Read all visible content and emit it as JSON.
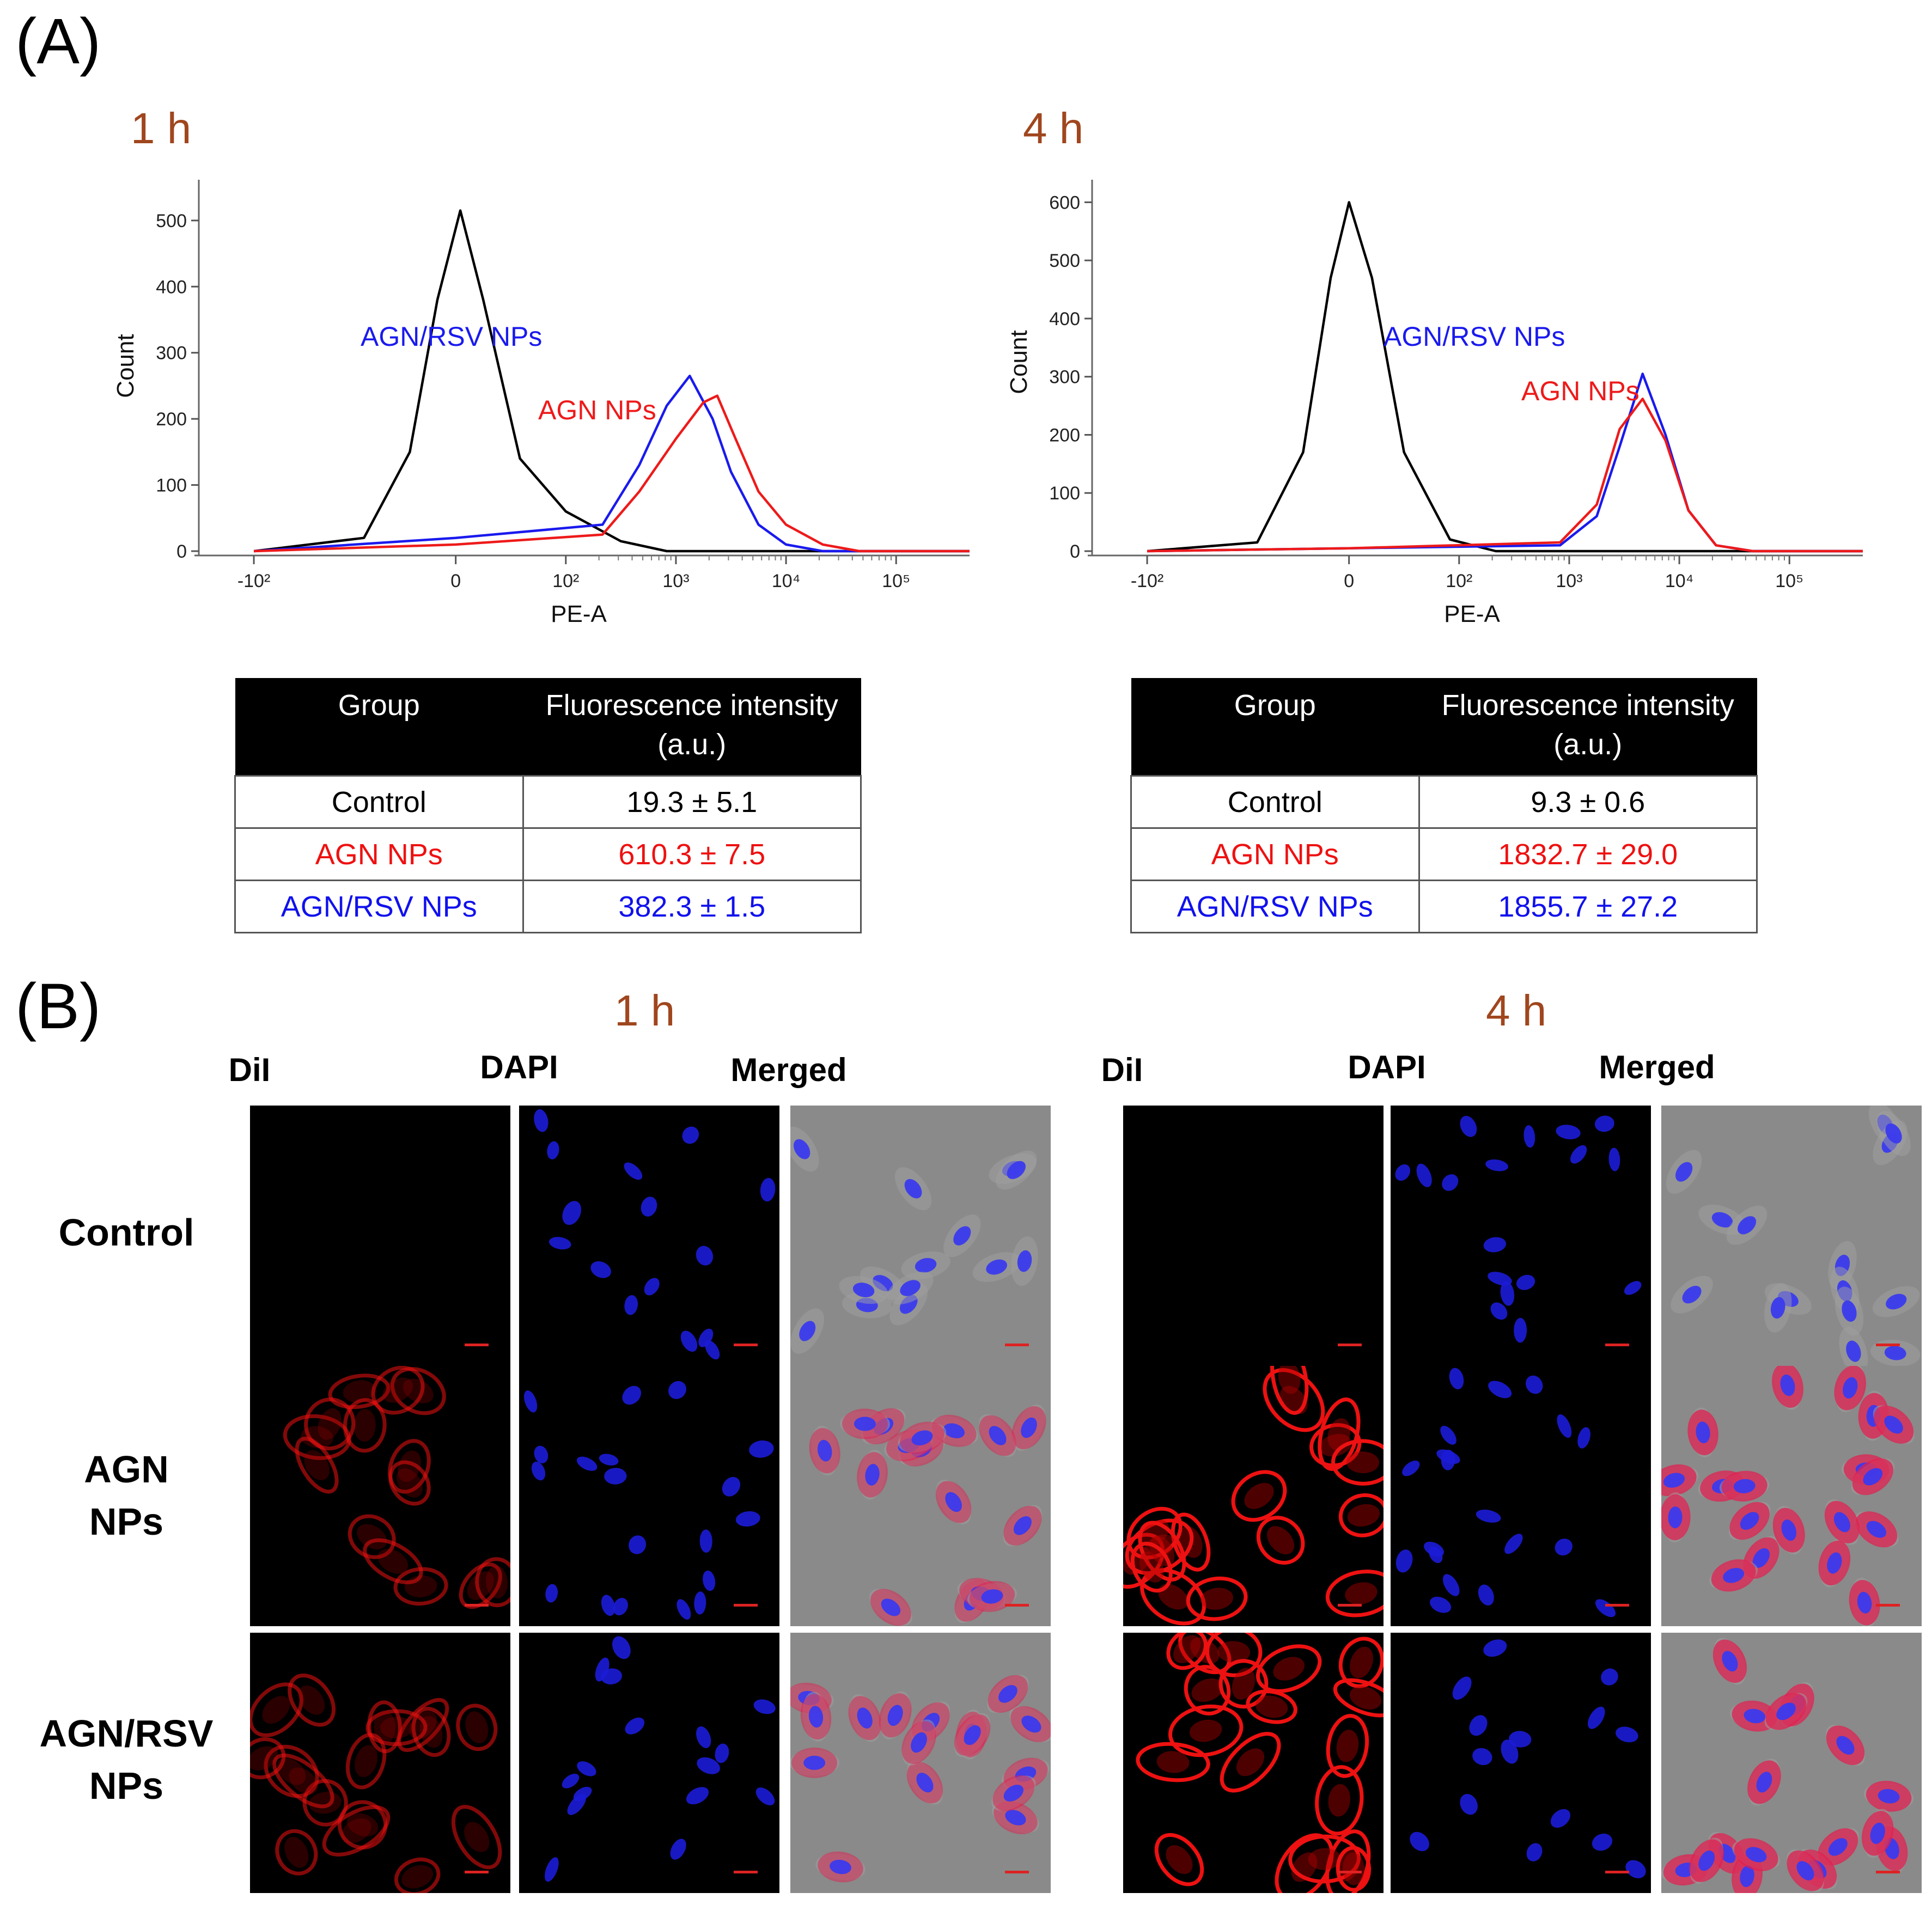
{
  "panel_a": {
    "label": "(A)",
    "plots": [
      {
        "time": "1 h",
        "ylabel": "Count",
        "xlabel": "PE-A",
        "y_ticks": [
          "0",
          "100",
          "200",
          "300",
          "400",
          "500"
        ],
        "x_ticks": [
          "-10²",
          "0",
          "10²",
          "10³",
          "10⁴",
          "10⁵"
        ],
        "blue_label": "AGN/RSV NPs",
        "red_label": "AGN NPs",
        "series": [
          {
            "name": "Control",
            "color": "#000000",
            "peak_x": 0.05,
            "peak_count": 515
          },
          {
            "name": "AGN/RSV NPs",
            "color": "#1a1aee",
            "peak_x": 2.55,
            "peak_count": 265
          },
          {
            "name": "AGN NPs",
            "color": "#ee1a1a",
            "peak_x": 2.85,
            "peak_count": 235
          }
        ]
      },
      {
        "time": "4 h",
        "ylabel": "Count",
        "xlabel": "PE-A",
        "y_ticks": [
          "0",
          "100",
          "200",
          "300",
          "400",
          "500",
          "600"
        ],
        "x_ticks": [
          "-10²",
          "0",
          "10²",
          "10³",
          "10⁴",
          "10⁵"
        ],
        "blue_label": "AGN/RSV NPs",
        "red_label": "AGN NPs",
        "series": [
          {
            "name": "Control",
            "color": "#000000",
            "peak_x": 0.0,
            "peak_count": 600
          },
          {
            "name": "AGN/RSV NPs",
            "color": "#1a1aee",
            "peak_x": 3.2,
            "peak_count": 305
          },
          {
            "name": "AGN NPs",
            "color": "#ee1a1a",
            "peak_x": 3.2,
            "peak_count": 262
          }
        ]
      }
    ],
    "tables": [
      {
        "header_group": "Group",
        "header_fi_line1": "Fluorescence intensity",
        "header_fi_line2": "(a.u.)",
        "rows": [
          {
            "group": "Control",
            "value": "19.3 ± 5.1",
            "color": "#000000"
          },
          {
            "group": "AGN NPs",
            "value": "610.3 ± 7.5",
            "color": "#ee1111"
          },
          {
            "group": "AGN/RSV NPs",
            "value": "382.3 ± 1.5",
            "color": "#1111ee"
          }
        ]
      },
      {
        "header_group": "Group",
        "header_fi_line1": "Fluorescence intensity",
        "header_fi_line2": "(a.u.)",
        "rows": [
          {
            "group": "Control",
            "value": "9.3 ± 0.6",
            "color": "#000000"
          },
          {
            "group": "AGN NPs",
            "value": "1832.7 ± 29.0",
            "color": "#ee1111"
          },
          {
            "group": "AGN/RSV NPs",
            "value": "1855.7 ± 27.2",
            "color": "#1111ee"
          }
        ]
      }
    ]
  },
  "panel_b": {
    "label": "(B)",
    "time_left": "1 h",
    "time_right": "4 h",
    "columns": [
      "DiI",
      "DAPI",
      "Merged"
    ],
    "rows": [
      {
        "line1": "Control",
        "line2": ""
      },
      {
        "line1": "AGN",
        "line2": "NPs"
      },
      {
        "line1": "AGN/RSV",
        "line2": "NPs"
      }
    ]
  },
  "chart_data": [
    {
      "type": "line",
      "title": "1 h",
      "xlabel": "PE-A",
      "ylabel": "Count",
      "xscale": "biexponential",
      "ylim": [
        0,
        560
      ],
      "series": [
        {
          "name": "Control",
          "color": "#000000",
          "x": [
            -2.2,
            -1.0,
            -0.5,
            -0.2,
            0.05,
            0.3,
            0.7,
            1.2,
            1.8,
            2.3
          ],
          "y": [
            0,
            20,
            150,
            380,
            515,
            380,
            140,
            60,
            15,
            0
          ]
        },
        {
          "name": "AGN/RSV NPs",
          "color": "#1a1aee",
          "x": [
            -2.2,
            0.0,
            1.6,
            2.0,
            2.3,
            2.55,
            2.8,
            3.0,
            3.3,
            3.6,
            4.0
          ],
          "y": [
            0,
            20,
            40,
            130,
            220,
            265,
            200,
            120,
            40,
            10,
            0
          ]
        },
        {
          "name": "AGN NPs",
          "color": "#ee1a1a",
          "x": [
            -2.2,
            0.0,
            1.6,
            2.0,
            2.4,
            2.7,
            2.85,
            3.05,
            3.3,
            3.6,
            4.0,
            4.4
          ],
          "y": [
            0,
            10,
            25,
            90,
            170,
            225,
            235,
            170,
            90,
            40,
            10,
            0
          ]
        }
      ]
    },
    {
      "type": "line",
      "title": "4 h",
      "xlabel": "PE-A",
      "ylabel": "Count",
      "xscale": "biexponential",
      "ylim": [
        0,
        650
      ],
      "series": [
        {
          "name": "Control",
          "color": "#000000",
          "x": [
            -2.2,
            -1.0,
            -0.5,
            -0.2,
            0.0,
            0.25,
            0.6,
            1.1,
            1.6
          ],
          "y": [
            0,
            15,
            170,
            470,
            600,
            470,
            170,
            20,
            0
          ]
        },
        {
          "name": "AGN/RSV NPs",
          "color": "#1a1aee",
          "x": [
            -2.2,
            0.0,
            2.3,
            2.7,
            2.95,
            3.2,
            3.45,
            3.7,
            4.0,
            4.4
          ],
          "y": [
            0,
            5,
            10,
            60,
            180,
            305,
            200,
            70,
            10,
            0
          ]
        },
        {
          "name": "AGN NPs",
          "color": "#ee1a1a",
          "x": [
            -2.2,
            0.0,
            2.3,
            2.7,
            2.95,
            3.2,
            3.45,
            3.7,
            4.0,
            4.4
          ],
          "y": [
            0,
            5,
            15,
            80,
            210,
            262,
            190,
            70,
            10,
            0
          ]
        }
      ]
    }
  ]
}
